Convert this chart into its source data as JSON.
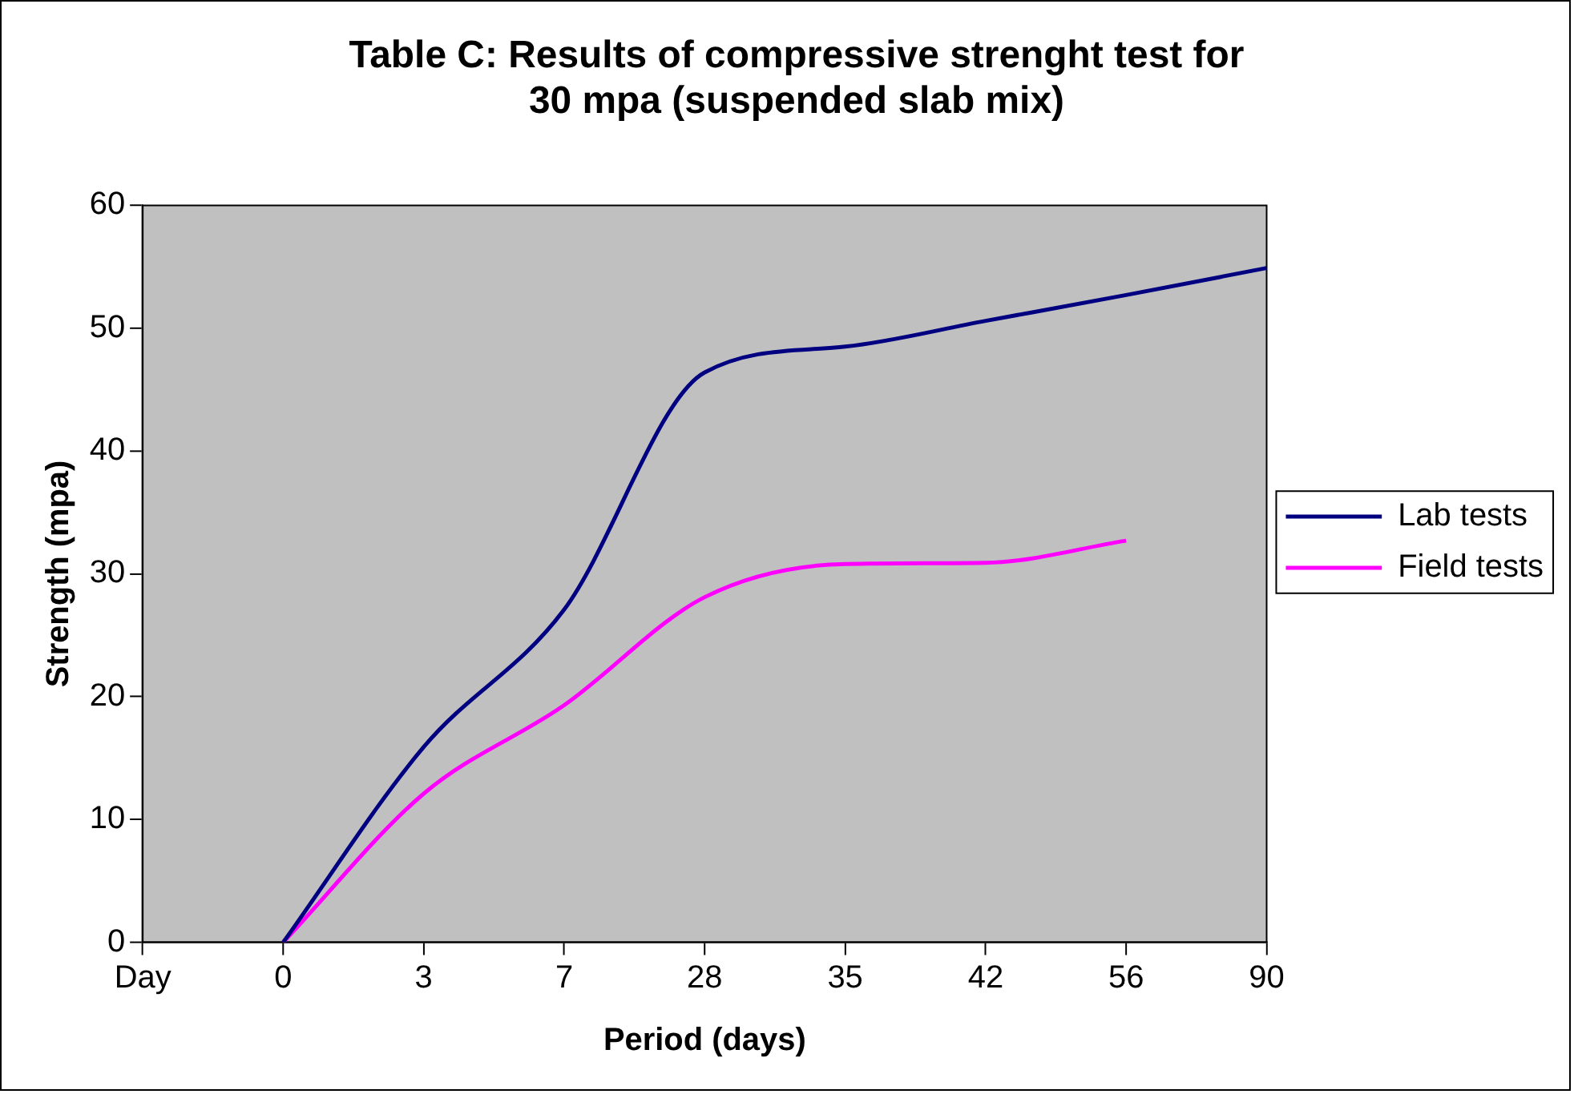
{
  "chart_data": {
    "type": "line",
    "title": [
      "Table C: Results of compressive strenght test for",
      "30 mpa (suspended slab mix)"
    ],
    "xlabel": "Period (days)",
    "ylabel": "Strength (mpa)",
    "categories": [
      "Day",
      "0",
      "3",
      "7",
      "28",
      "35",
      "42",
      "56",
      "90"
    ],
    "series": [
      {
        "name": "Lab tests",
        "color": "#000080",
        "values": [
          null,
          0,
          15.9,
          27.1,
          46.4,
          48.5,
          50.6,
          52.7,
          54.9
        ]
      },
      {
        "name": "Field tests",
        "color": "#ff00ff",
        "values": [
          null,
          0,
          12.1,
          19.3,
          28.1,
          30.8,
          30.9,
          32.7,
          null
        ]
      }
    ],
    "ylim": [
      0,
      60
    ],
    "yticks": [
      0,
      10,
      20,
      30,
      40,
      50,
      60
    ],
    "grid": false,
    "legend": "right",
    "marker": "none",
    "line_style": "solid"
  }
}
